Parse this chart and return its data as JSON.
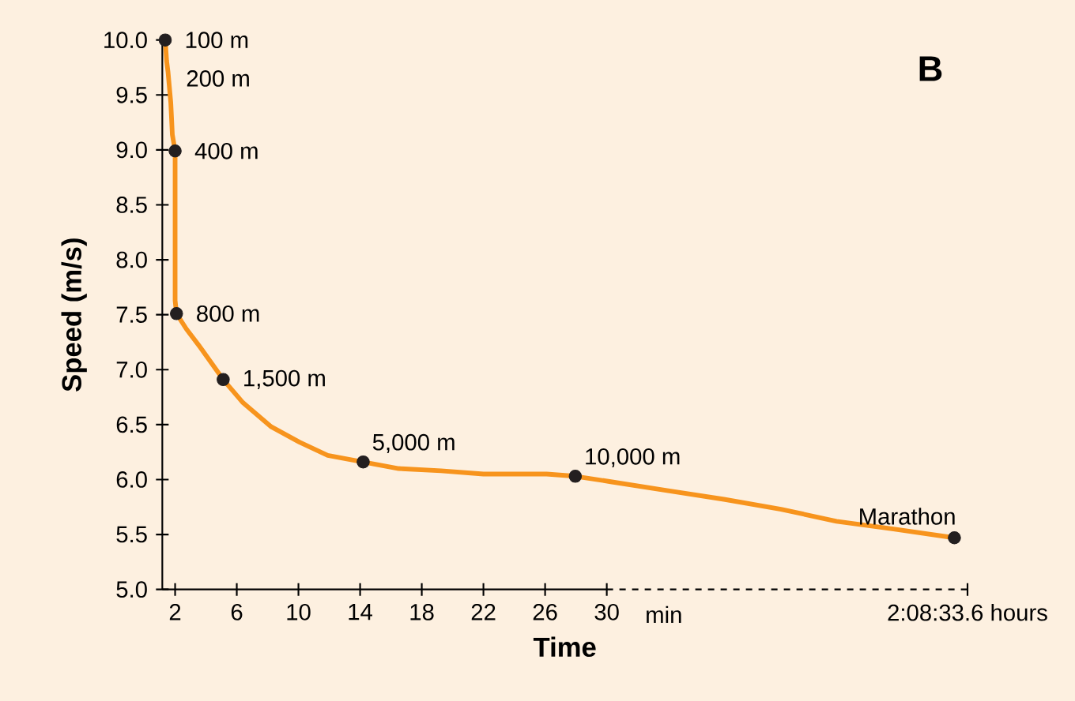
{
  "chart_data": {
    "type": "line",
    "xlabel": "Time",
    "ylabel": "Speed (m/s)",
    "xlim": [
      1.17,
      53.4
    ],
    "ylim": [
      5,
      10
    ],
    "xticks": [
      2,
      6,
      10,
      14,
      18,
      22,
      26,
      30,
      {
        "value": 53.4,
        "label": "2:08:33.6 hours"
      }
    ],
    "yticks": [
      {
        "value": 5,
        "label": "5.0"
      },
      {
        "value": 5.5,
        "label": "5.5"
      },
      {
        "value": 6,
        "label": "6.0"
      },
      {
        "value": 6.5,
        "label": "6.5"
      },
      {
        "value": 7,
        "label": "7.0"
      },
      {
        "value": 7.5,
        "label": "7.5"
      },
      {
        "value": 8,
        "label": "8.0"
      },
      {
        "value": 8.5,
        "label": "8.5"
      },
      {
        "value": 9,
        "label": "9.0"
      },
      {
        "value": 9.5,
        "label": "9.5"
      },
      {
        "value": 10,
        "label": "10.0"
      }
    ],
    "series": [
      {
        "color": "#f7941d",
        "marker": "none",
        "x": [
          1.36,
          1.45,
          1.54,
          1.63,
          1.72,
          1.82,
          2.0,
          2.0,
          2.09,
          2.73,
          3.65,
          5.12,
          6.4,
          8.24,
          10.07,
          11.9,
          14.2,
          16.5,
          19.25,
          22.0,
          26.1,
          27.96,
          30.26,
          33.9,
          37.6,
          41.3,
          44.9,
          48.6,
          52.55
        ],
        "values": [
          10.0,
          9.81,
          9.71,
          9.57,
          9.43,
          9.14,
          8.99,
          7.63,
          7.51,
          7.37,
          7.2,
          6.91,
          6.7,
          6.48,
          6.34,
          6.22,
          6.16,
          6.1,
          6.08,
          6.05,
          6.05,
          6.03,
          5.98,
          5.9,
          5.82,
          5.73,
          5.62,
          5.55,
          5.47
        ]
      },
      {
        "type": "scatter",
        "color": "#231f20",
        "marker": "circle",
        "x": [
          1.36,
          2.0,
          2.09,
          5.12,
          14.2,
          27.96,
          52.55
        ],
        "values": [
          10.0,
          8.99,
          7.51,
          6.91,
          6.16,
          6.03,
          5.47
        ]
      }
    ],
    "annotations": [
      "B",
      "min",
      {
        "text": "100 m",
        "x": 1.36,
        "y": 10.0
      },
      {
        "text": "200 m",
        "x": 1.45,
        "y": 9.65
      },
      {
        "text": "400 m",
        "x": 2.0,
        "y": 8.99
      },
      {
        "text": "800 m",
        "x": 2.09,
        "y": 7.51
      },
      {
        "text": "1,500 m",
        "x": 5.12,
        "y": 6.91
      },
      {
        "text": "5,000 m",
        "x": 14.2,
        "y": 6.16
      },
      {
        "text": "10,000 m",
        "x": 27.96,
        "y": 6.03
      },
      {
        "text": "Marathon",
        "x": 52.55,
        "y": 5.47
      }
    ]
  }
}
